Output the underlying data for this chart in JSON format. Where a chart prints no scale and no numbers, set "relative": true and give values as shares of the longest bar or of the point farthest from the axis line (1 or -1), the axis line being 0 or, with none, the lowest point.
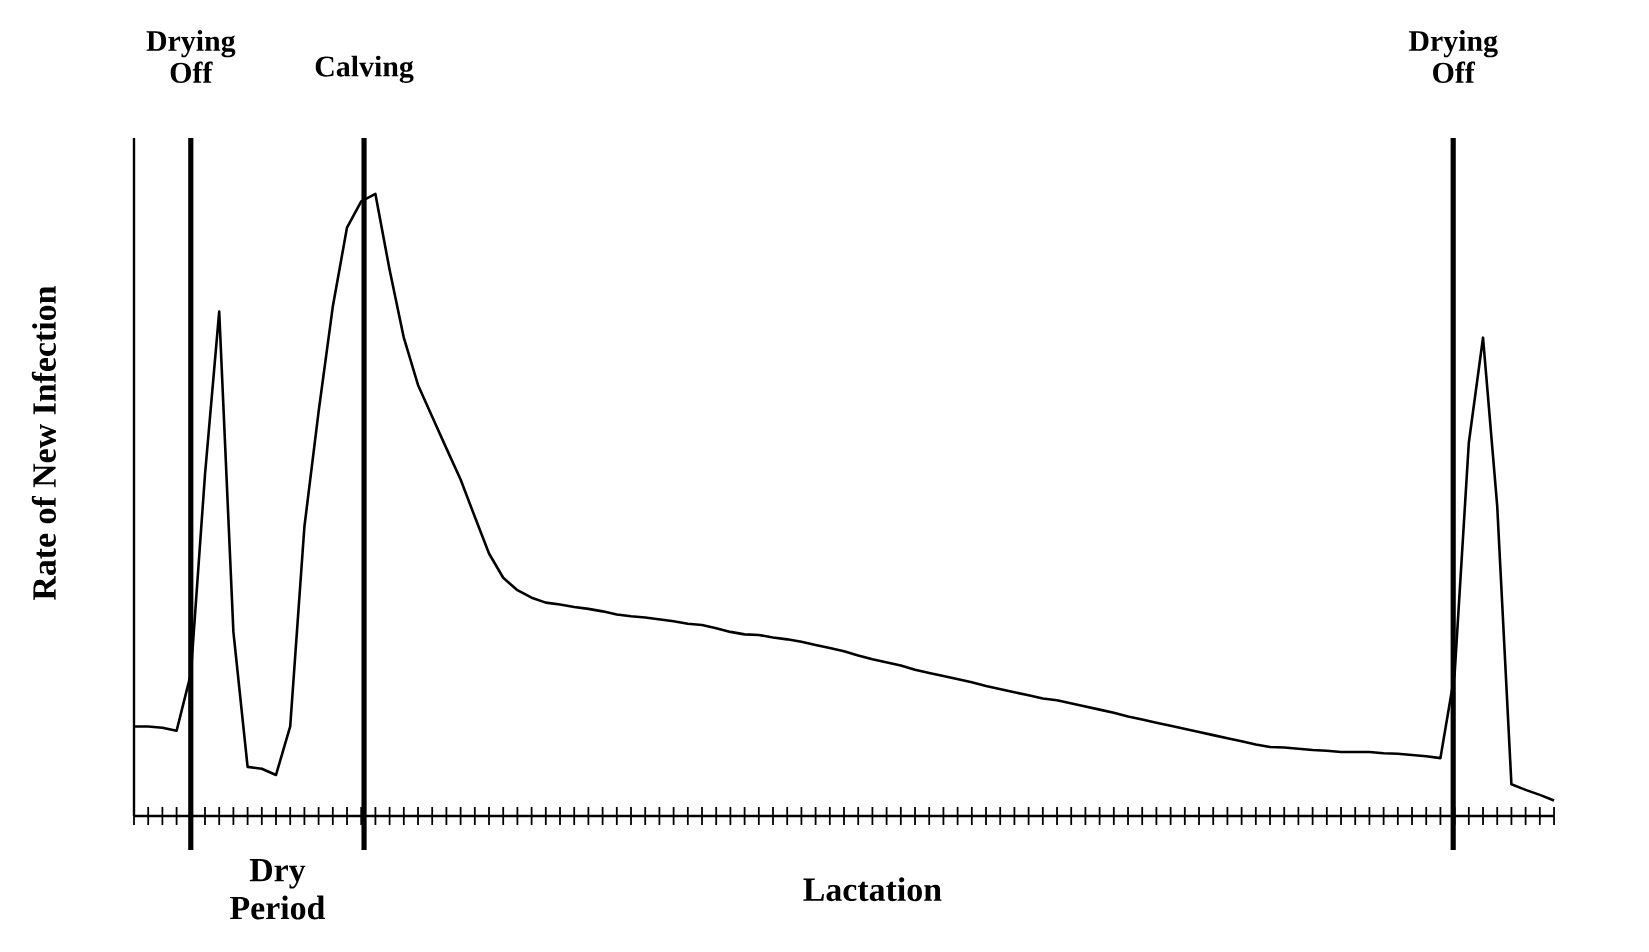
{
  "chart_data": {
    "type": "line",
    "relative": true,
    "ylabel": "Rate of New Infection",
    "xlabel": "Lactation",
    "annotations": [
      "Drying Off",
      "Calving",
      "Drying Off",
      "Dry Period"
    ],
    "categories": [
      null,
      null,
      null,
      null,
      null,
      null,
      null,
      null,
      null,
      null,
      null,
      null,
      null,
      null,
      null,
      null,
      null,
      null,
      null,
      null,
      null,
      null,
      null,
      null,
      null,
      null,
      null,
      null,
      null,
      null,
      null,
      null,
      null,
      null,
      null,
      null,
      null,
      null,
      null,
      null,
      null,
      null,
      null,
      null,
      null,
      null,
      null,
      null,
      null,
      null,
      null,
      null,
      null,
      null,
      null,
      null,
      null,
      null,
      null,
      null,
      null,
      null,
      null,
      null,
      null,
      null,
      null,
      null,
      null,
      null,
      null,
      null,
      null,
      null,
      null,
      null,
      null,
      null,
      null,
      null,
      null,
      null,
      null,
      null,
      null,
      null,
      null,
      null,
      null,
      null,
      null,
      null,
      null,
      null,
      null,
      null,
      null,
      null,
      null,
      null,
      null
    ],
    "color": "#000000",
    "values": [
      0.144,
      0.144,
      0.142,
      0.137,
      0.228,
      0.549,
      0.811,
      0.296,
      0.079,
      0.076,
      0.066,
      0.144,
      0.465,
      0.65,
      0.819,
      0.946,
      0.988,
      1.0,
      0.878,
      0.769,
      0.693,
      0.642,
      0.591,
      0.541,
      0.481,
      0.422,
      0.383,
      0.363,
      0.351,
      0.343,
      0.34,
      0.336,
      0.333,
      0.329,
      0.324,
      0.321,
      0.319,
      0.316,
      0.313,
      0.309,
      0.307,
      0.302,
      0.296,
      0.292,
      0.291,
      0.287,
      0.284,
      0.28,
      0.275,
      0.27,
      0.265,
      0.258,
      0.252,
      0.247,
      0.242,
      0.235,
      0.23,
      0.225,
      0.22,
      0.215,
      0.209,
      0.204,
      0.199,
      0.194,
      0.189,
      0.186,
      0.181,
      0.176,
      0.171,
      0.166,
      0.16,
      0.155,
      0.15,
      0.145,
      0.14,
      0.135,
      0.13,
      0.125,
      0.12,
      0.115,
      0.111,
      0.11,
      0.108,
      0.106,
      0.105,
      0.103,
      0.103,
      0.103,
      0.101,
      0.1,
      0.098,
      0.096,
      0.093,
      0.228,
      0.6,
      0.769,
      0.498,
      0.051,
      0.042,
      0.034,
      0.025
    ]
  }
}
